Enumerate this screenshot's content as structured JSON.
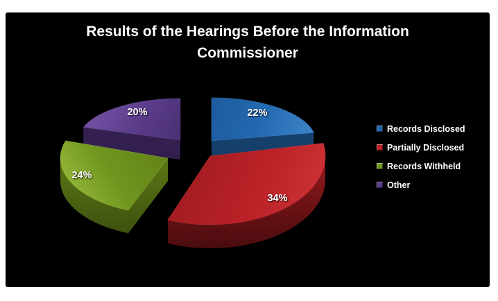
{
  "title": "Results of the Hearings Before the Information Commissioner",
  "background_color": "#000000",
  "page_background": "#ffffff",
  "text_color": "#ffffff",
  "chart_data": {
    "type": "pie",
    "style": "3d-exploded",
    "title": "Results of the Hearings Before the Information Commissioner",
    "legend_position": "right",
    "start_angle_deg": 0,
    "slices": [
      {
        "label": "Records Disclosed",
        "value": 22,
        "display": "22%",
        "color": "#2268b0",
        "color_light": "#4189cb",
        "color_dark": "#1b5290",
        "side_color": "#16406c",
        "side_dark": "#0d2a47"
      },
      {
        "label": "Partially Disclosed",
        "value": 34,
        "display": "34%",
        "color": "#bb2227",
        "color_light": "#d1363a",
        "color_dark": "#9c1b20",
        "side_color": "#8c181c",
        "side_dark": "#4a0c0e"
      },
      {
        "label": "Records Withheld",
        "value": 24,
        "display": "24%",
        "color": "#70961f",
        "color_light": "#9dc03f",
        "color_dark": "#5e7e17",
        "side_color": "#597315",
        "side_dark": "#3c4f0e"
      },
      {
        "label": "Other",
        "value": 20,
        "display": "20%",
        "color": "#5a3b8a",
        "color_light": "#6f4f9f",
        "color_dark": "#462d6e",
        "side_color": "#342050",
        "side_dark": "#221437"
      }
    ]
  }
}
